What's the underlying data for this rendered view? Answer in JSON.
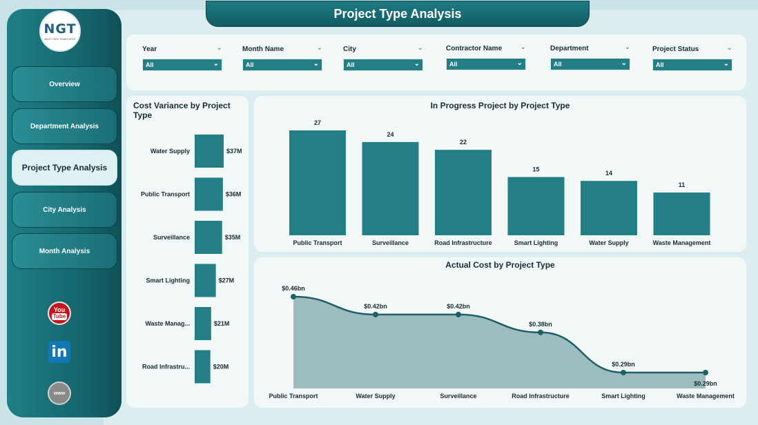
{
  "header": {
    "title": "Project Type Analysis"
  },
  "logo": {
    "text": "NGT",
    "subtext": "NEXT GEN TEMPLATES"
  },
  "nav": {
    "items": [
      {
        "label": "Overview",
        "active": false
      },
      {
        "label": "Department Analysis",
        "active": false
      },
      {
        "label": "Project Type Analysis",
        "active": true
      },
      {
        "label": "City Analysis",
        "active": false
      },
      {
        "label": "Month Analysis",
        "active": false
      }
    ]
  },
  "social": {
    "youtube_top": "You",
    "youtube_bottom": "Tube",
    "linkedin": "in",
    "web": "www"
  },
  "filters": [
    {
      "label": "Year",
      "value": "All"
    },
    {
      "label": "Month Name",
      "value": "All"
    },
    {
      "label": "City",
      "value": "All"
    },
    {
      "label": "Contractor Name",
      "value": "All"
    },
    {
      "label": "Department",
      "value": "All"
    },
    {
      "label": "Project Status",
      "value": "All"
    }
  ],
  "colors": {
    "accent": "#237e86",
    "area_fill": "#9dbcc0",
    "line": "#1d5f66"
  },
  "chart_data": [
    {
      "type": "bar",
      "orientation": "horizontal",
      "title": "Cost Variance by Project Type",
      "categories": [
        "Water Supply",
        "Public Transport",
        "Surveillance",
        "Smart Lighting",
        "Waste Manag...",
        "Road Infrastru..."
      ],
      "values": [
        37,
        36,
        35,
        27,
        21,
        20
      ],
      "labels": [
        "$37M",
        "$36M",
        "$35M",
        "$27M",
        "$21M",
        "$20M"
      ],
      "xlim": [
        0,
        37
      ]
    },
    {
      "type": "bar",
      "title": "In Progress Project by Project Type",
      "categories": [
        "Public Transport",
        "Surveillance",
        "Road Infrastructure",
        "Smart Lighting",
        "Water Supply",
        "Waste Management"
      ],
      "values": [
        27,
        24,
        22,
        15,
        14,
        11
      ],
      "labels": [
        "27",
        "24",
        "22",
        "15",
        "14",
        "11"
      ],
      "ylim": [
        0,
        27
      ]
    },
    {
      "type": "area",
      "title": "Actual Cost by Project Type",
      "categories": [
        "Public Transport",
        "Water Supply",
        "Surveillance",
        "Road Infrastructure",
        "Smart Lighting",
        "Waste Management"
      ],
      "values": [
        0.46,
        0.42,
        0.42,
        0.38,
        0.29,
        0.29
      ],
      "labels": [
        "$0.46bn",
        "$0.42bn",
        "$0.42bn",
        "$0.38bn",
        "$0.29bn",
        "$0.29bn"
      ],
      "ylim": [
        0,
        0.46
      ]
    }
  ]
}
